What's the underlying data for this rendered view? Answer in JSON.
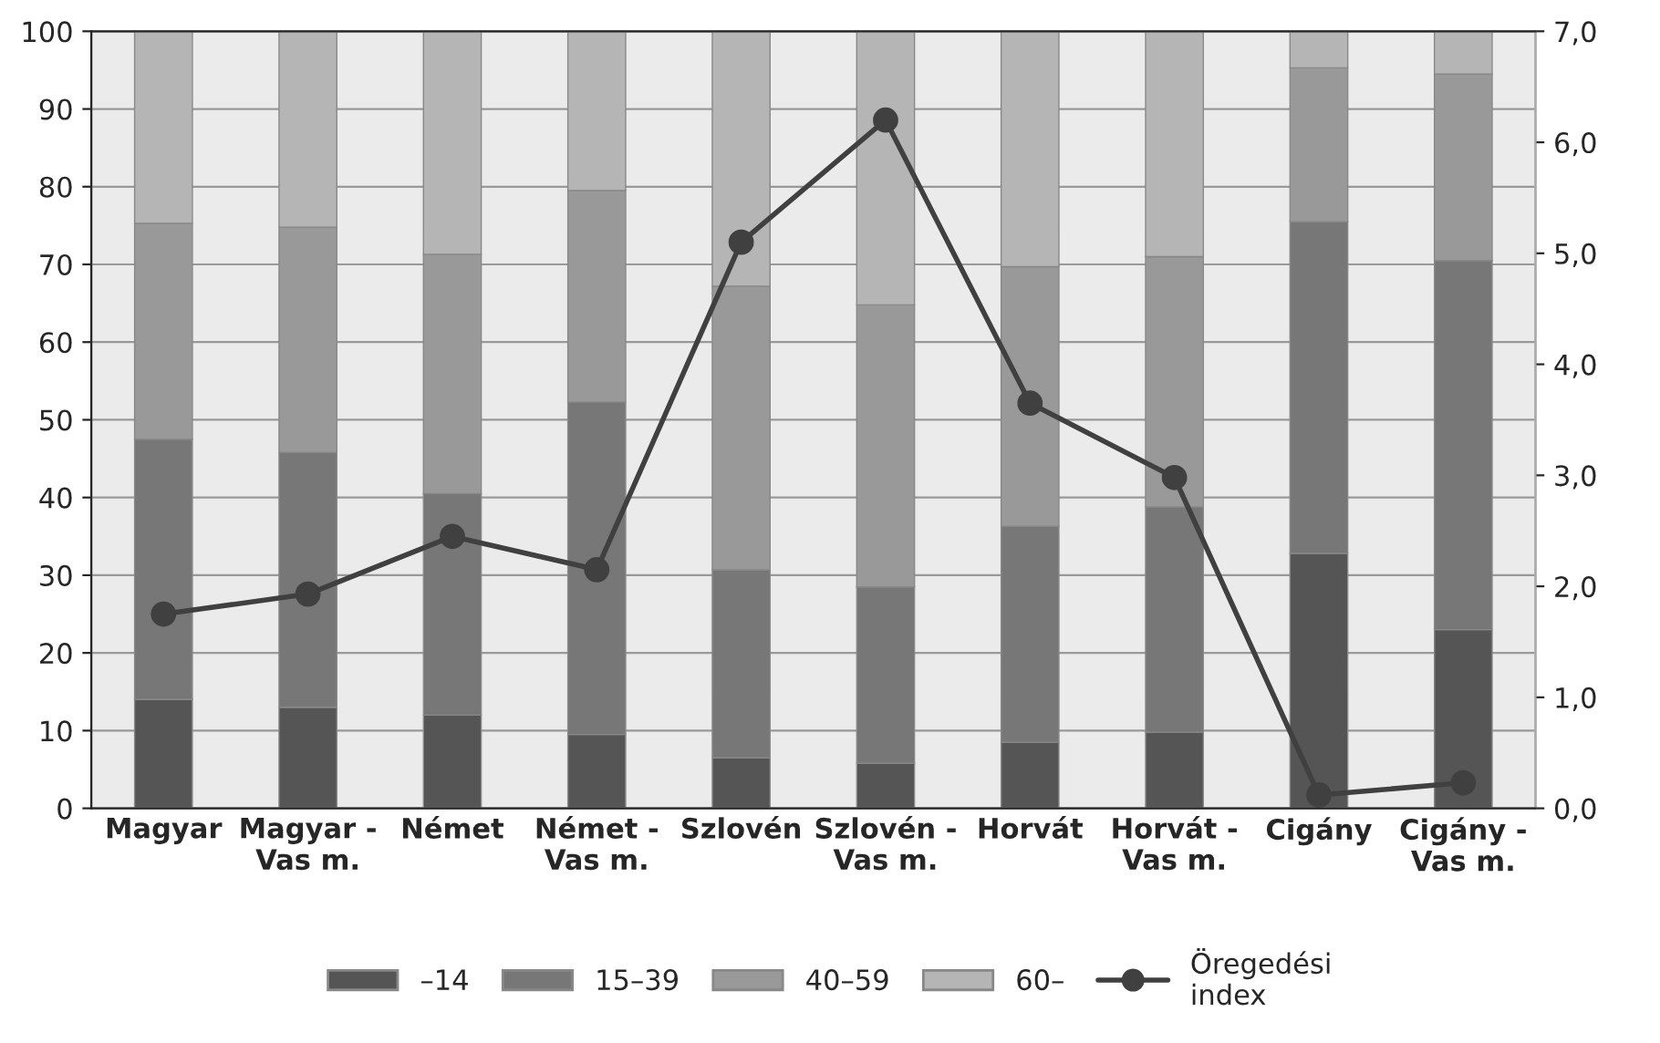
{
  "chart_data": {
    "type": "bar",
    "stacked": true,
    "categories": [
      "Magyar",
      "Magyar -\nVas m.",
      "Német",
      "Német -\nVas m.",
      "Szlovén",
      "Szlovén -\nVas m.",
      "Horvát",
      "Horvát -\nVas m.",
      "Cigány",
      "Cigány -\nVas m."
    ],
    "series": [
      {
        "name": "–14",
        "color": "#555555",
        "values": [
          14,
          13,
          12,
          9.5,
          6.5,
          5.8,
          8.5,
          9.8,
          32.8,
          23
        ]
      },
      {
        "name": "15–39",
        "color": "#777777",
        "values": [
          33.5,
          32.8,
          28.5,
          42.8,
          24.2,
          22.7,
          27.8,
          29,
          42.7,
          47.5
        ]
      },
      {
        "name": "40–59",
        "color": "#999999",
        "values": [
          27.8,
          29,
          30.8,
          27.2,
          36.5,
          36.3,
          33.4,
          32.2,
          19.8,
          24
        ]
      },
      {
        "name": "60–",
        "color": "#b5b5b5",
        "values": [
          24.7,
          25.2,
          28.7,
          20.5,
          32.8,
          35.2,
          30.3,
          29,
          4.7,
          5.5
        ]
      },
      {
        "name": "Öregedési\nindex",
        "type": "line",
        "axis": "y2",
        "color": "#404040",
        "marker": "circle",
        "values": [
          1.75,
          1.93,
          2.45,
          2.15,
          5.1,
          6.2,
          3.65,
          2.98,
          0.12,
          0.23
        ]
      }
    ],
    "ylim": [
      0,
      100
    ],
    "yticks": [
      0,
      10,
      20,
      30,
      40,
      50,
      60,
      70,
      80,
      90,
      100
    ],
    "y2lim": [
      0,
      7
    ],
    "y2ticks": [
      {
        "value": 0,
        "label": "0,0"
      },
      {
        "value": 1,
        "label": "1,0"
      },
      {
        "value": 2,
        "label": "2,0"
      },
      {
        "value": 3,
        "label": "3,0"
      },
      {
        "value": 4,
        "label": "4,0"
      },
      {
        "value": 5,
        "label": "5,0"
      },
      {
        "value": 6,
        "label": "6,0"
      },
      {
        "value": 7,
        "label": "7,0"
      }
    ],
    "grid": true,
    "legend": "bottom"
  }
}
